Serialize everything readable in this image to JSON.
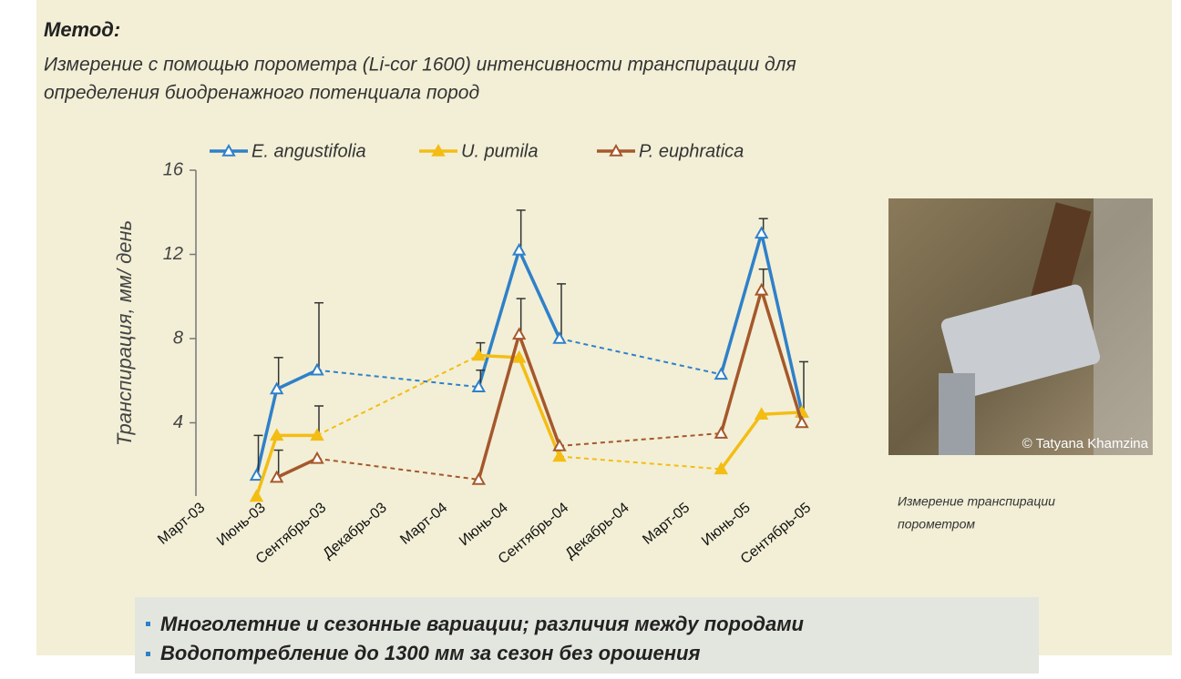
{
  "header": {
    "title": "Метод:",
    "text_lines": [
      "Измерение  с помощью порометра  (Li-cor 1600) интенсивности транспирации для",
      "определения биодренажного потенциала пород"
    ]
  },
  "photo": {
    "credit": "© Tatyana Khamzina",
    "caption_lines": [
      "Измерение транспирации",
      "порометром"
    ]
  },
  "bullets": [
    "Многолетние и сезонные вариации; различия между породами",
    "Водопотребление до 1300 мм за сезон без орошения"
  ],
  "chart_data": {
    "type": "line",
    "y_label": "Транспирация, мм/ день",
    "categories": [
      "Март-03",
      null,
      null,
      "Июнь-03",
      null,
      null,
      "Сентябрь-03",
      null,
      null,
      "Декабрь-03",
      null,
      null,
      "Март-04",
      null,
      null,
      "Июнь-04",
      null,
      null,
      "Сентябрь-04",
      null,
      null,
      "Декабрь-04",
      null,
      null,
      "Март-05",
      null,
      null,
      "Июнь-05",
      null,
      null,
      "Сентябрь-05"
    ],
    "ylim": [
      0,
      16
    ],
    "yticks": [
      4,
      8,
      12,
      16
    ],
    "series": [
      {
        "name": "E. angustifolia",
        "color": "#2f80c9",
        "marker": "open",
        "values": [
          null,
          null,
          null,
          1.5,
          5.6,
          null,
          6.5,
          null,
          null,
          null,
          null,
          null,
          null,
          null,
          5.7,
          null,
          12.2,
          null,
          8.0,
          null,
          null,
          null,
          null,
          null,
          null,
          null,
          6.3,
          null,
          13.0,
          null,
          4.5
        ],
        "errors": [
          null,
          null,
          null,
          1.9,
          1.5,
          null,
          3.2,
          null,
          null,
          null,
          null,
          null,
          null,
          null,
          0.8,
          null,
          1.9,
          null,
          2.6,
          null,
          null,
          null,
          null,
          null,
          null,
          null,
          null,
          null,
          0.7,
          null,
          2.4
        ]
      },
      {
        "name": "U. pumila",
        "color": "#f4bd14",
        "marker": "filled",
        "values": [
          null,
          null,
          null,
          0.5,
          3.4,
          null,
          3.4,
          null,
          null,
          null,
          null,
          null,
          null,
          null,
          7.2,
          null,
          7.1,
          null,
          2.4,
          null,
          null,
          null,
          null,
          null,
          null,
          null,
          1.8,
          null,
          4.4,
          null,
          4.5
        ],
        "errors": [
          null,
          null,
          null,
          null,
          null,
          null,
          1.4,
          null,
          null,
          null,
          null,
          null,
          null,
          null,
          0.6,
          null,
          null,
          null,
          null,
          null,
          null,
          null,
          null,
          null,
          null,
          null,
          null,
          null,
          null,
          null,
          null
        ]
      },
      {
        "name": "P. euphratica",
        "color": "#a5582b",
        "marker": "open",
        "values": [
          null,
          null,
          null,
          null,
          1.4,
          null,
          2.3,
          null,
          null,
          null,
          null,
          null,
          null,
          null,
          1.3,
          null,
          8.2,
          null,
          2.9,
          null,
          null,
          null,
          null,
          null,
          null,
          null,
          3.5,
          null,
          10.3,
          null,
          4.0
        ],
        "errors": [
          null,
          null,
          null,
          null,
          1.3,
          null,
          null,
          null,
          null,
          null,
          null,
          null,
          null,
          null,
          null,
          null,
          1.7,
          null,
          null,
          null,
          null,
          null,
          null,
          null,
          null,
          null,
          null,
          null,
          1.0,
          null,
          null
        ]
      }
    ]
  }
}
